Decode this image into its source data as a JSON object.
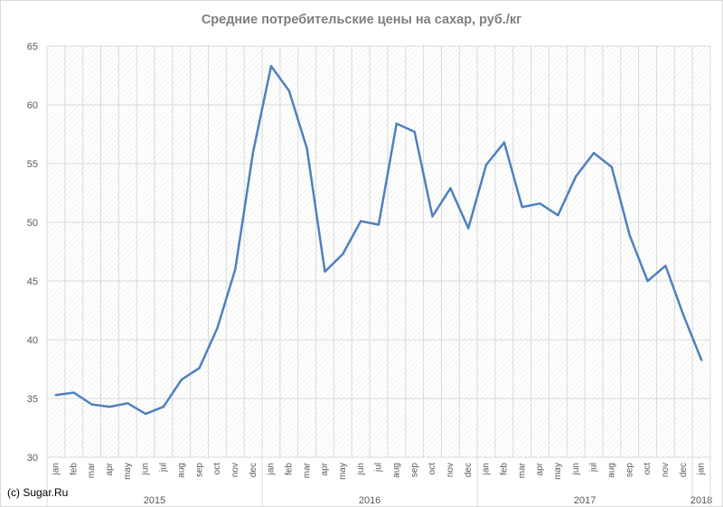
{
  "title": "Средние потребительские цены на сахар, руб./кг",
  "credit": "(c) Sugar.Ru",
  "chart_data": {
    "type": "line",
    "title": "Средние потребительские цены на сахар, руб./кг",
    "ylim": [
      30,
      65
    ],
    "yticks": [
      30,
      35,
      40,
      45,
      50,
      55,
      60,
      65
    ],
    "grid": true,
    "line_color": "#4f81bd",
    "x": [
      "jan",
      "feb",
      "mar",
      "apr",
      "may",
      "jun",
      "jul",
      "aug",
      "sep",
      "oct",
      "nov",
      "dec",
      "jan",
      "feb",
      "mar",
      "apr",
      "may",
      "jun",
      "jul",
      "aug",
      "sep",
      "oct",
      "nov",
      "dec",
      "jan",
      "feb",
      "mar",
      "apr",
      "may",
      "jun",
      "jul",
      "aug",
      "sep",
      "oct",
      "nov",
      "dec",
      "jan"
    ],
    "years": [
      {
        "label": "2015",
        "start": 0,
        "count": 12
      },
      {
        "label": "2016",
        "start": 12,
        "count": 12
      },
      {
        "label": "2017",
        "start": 24,
        "count": 12
      },
      {
        "label": "2018",
        "start": 36,
        "count": 1
      }
    ],
    "series": [
      {
        "values": [
          35.3,
          35.5,
          34.5,
          34.3,
          34.6,
          33.7,
          34.3,
          36.6,
          37.6,
          41.0,
          46.0,
          56.0,
          63.3,
          61.2,
          56.3,
          45.8,
          47.3,
          50.1,
          49.8,
          58.4,
          57.7,
          50.5,
          52.9,
          49.5,
          54.9,
          56.8,
          51.3,
          51.6,
          50.6,
          53.9,
          55.9,
          54.7,
          48.9,
          45.0,
          46.3,
          42.1,
          38.3
        ]
      }
    ]
  }
}
